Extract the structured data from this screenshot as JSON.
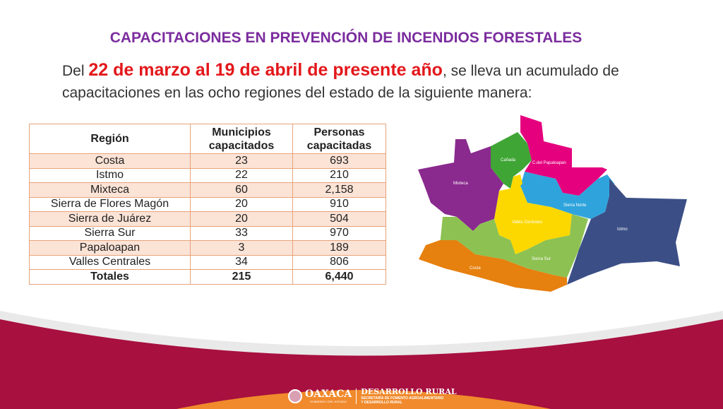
{
  "title": "CAPACITACIONES EN PREVENCIÓN DE INCENDIOS FORESTALES",
  "intro": {
    "prefix": "Del ",
    "highlight": "22 de marzo al 19 de abril de presente año",
    "suffix": ", se lleva un acumulado de capacitaciones en las ocho regiones del estado de la siguiente manera:"
  },
  "table": {
    "headers": [
      "Región",
      "Municipios capacitados",
      "Personas capacitadas"
    ],
    "rows": [
      [
        "Costa",
        "23",
        "693"
      ],
      [
        "Istmo",
        "22",
        "210"
      ],
      [
        "Mixteca",
        "60",
        "2,158"
      ],
      [
        "Sierra de Flores Magón",
        "20",
        "910"
      ],
      [
        "Sierra de Juárez",
        "20",
        "504"
      ],
      [
        "Sierra Sur",
        "33",
        "970"
      ],
      [
        "Papaloapan",
        "3",
        "189"
      ],
      [
        "Valles Centrales",
        "34",
        "806"
      ]
    ],
    "totals": [
      "Totales",
      "215",
      "6,440"
    ]
  },
  "map": {
    "regions": [
      {
        "name": "Mixteca",
        "color": "#8a2a8e"
      },
      {
        "name": "Cañada",
        "color": "#3fa535"
      },
      {
        "name": "C.del Papaloapan",
        "color": "#e5007e"
      },
      {
        "name": "Sierra Norte",
        "color": "#2fa4dc"
      },
      {
        "name": "Istmo",
        "color": "#3b4f86"
      },
      {
        "name": "Valles Centrales",
        "color": "#fcd800"
      },
      {
        "name": "Sierra Sur",
        "color": "#8dc152"
      },
      {
        "name": "Costa",
        "color": "#e6800e"
      }
    ]
  },
  "footer": {
    "logo": "OAXACA",
    "logo_sub": "GOBIERNO DEL ESTADO",
    "dept": "DESARROLLO RURAL",
    "dept_sub1": "SECRETARÍA DE FOMENTO AGROALIMENTARIO",
    "dept_sub2": "Y DESARROLLO RURAL"
  }
}
